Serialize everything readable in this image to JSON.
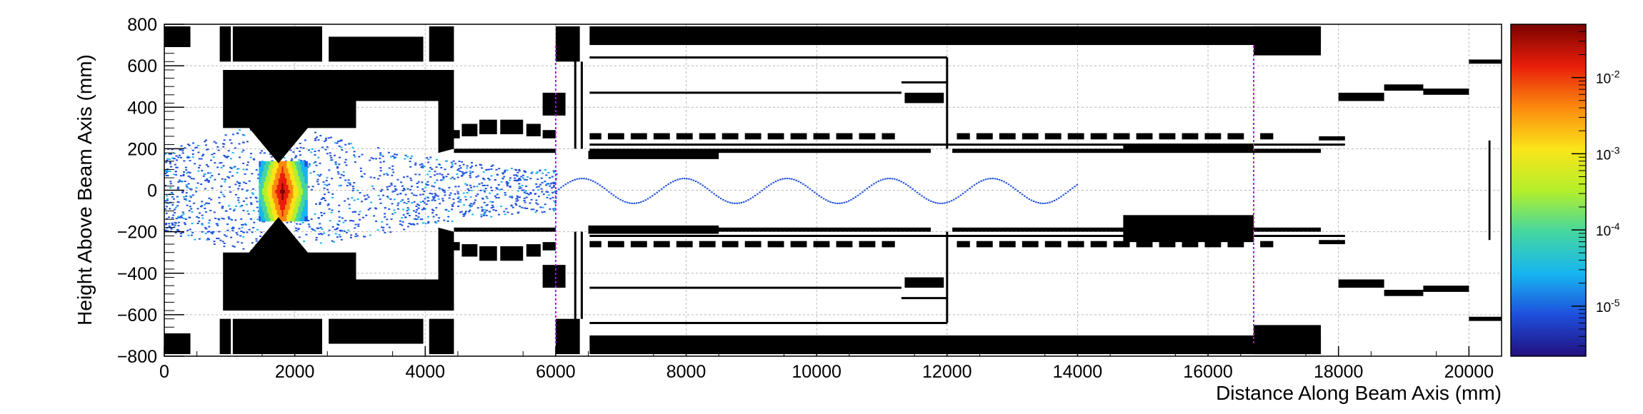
{
  "chart_data": {
    "type": "heatmap",
    "title": "",
    "xlabel": "Distance Along Beam Axis (mm)",
    "ylabel": "Height Above Beam Axis (mm)",
    "xlim": [
      0,
      20500
    ],
    "ylim": [
      -800,
      800
    ],
    "x_ticks": [
      0,
      2000,
      4000,
      6000,
      8000,
      10000,
      12000,
      14000,
      16000,
      18000,
      20000
    ],
    "x_tick_labels": [
      "0",
      "2000",
      "4000",
      "6000",
      "8000",
      "10000",
      "12000",
      "14000",
      "16000",
      "18000",
      "20000"
    ],
    "y_ticks": [
      -800,
      -600,
      -400,
      -200,
      0,
      200,
      400,
      600,
      800
    ],
    "y_tick_labels": [
      "−800",
      "−600",
      "−400",
      "−200",
      "0",
      "200",
      "400",
      "600",
      "800"
    ],
    "grid": true,
    "colorscale": {
      "type": "log",
      "range": [
        2.2e-06,
        0.05
      ],
      "tick_values": [
        1e-05,
        0.0001,
        0.001,
        0.01
      ],
      "tick_labels": [
        "10^-5",
        "10^-4",
        "10^-3",
        "10^-2"
      ],
      "colors": [
        "#22107f",
        "#1e4fdc",
        "#17b6ef",
        "#45d6a0",
        "#b4f02a",
        "#fbe41a",
        "#fb8a0e",
        "#e81d0a",
        "#7a0200"
      ]
    },
    "markers": {
      "vertical_lines_x": [
        6000,
        16700
      ],
      "vertical_line_color": "#cc00cc"
    },
    "detector_blocks": [
      [
        0,
        400,
        690,
        790
      ],
      [
        0,
        400,
        -790,
        -690
      ],
      [
        850,
        1020,
        620,
        790
      ],
      [
        1050,
        2420,
        620,
        790
      ],
      [
        2520,
        3970,
        620,
        740
      ],
      [
        4060,
        4440,
        620,
        790
      ],
      [
        850,
        1020,
        -790,
        -620
      ],
      [
        1050,
        2420,
        -790,
        -620
      ],
      [
        2520,
        3970,
        -740,
        -620
      ],
      [
        4060,
        4440,
        -790,
        -620
      ],
      [
        6000,
        6370,
        620,
        790
      ],
      [
        6000,
        6370,
        -790,
        -620
      ],
      [
        6520,
        17730,
        700,
        790
      ],
      [
        6520,
        17730,
        -790,
        -700
      ],
      [
        16700,
        17730,
        650,
        790
      ],
      [
        16700,
        17730,
        -790,
        -650
      ],
      [
        5800,
        6150,
        360,
        470
      ],
      [
        5800,
        6150,
        -470,
        -360
      ],
      [
        4440,
        6000,
        180,
        200
      ],
      [
        4440,
        6000,
        -200,
        -180
      ],
      [
        4300,
        4530,
        250,
        290
      ],
      [
        4560,
        4800,
        260,
        320
      ],
      [
        4830,
        5100,
        270,
        340
      ],
      [
        5150,
        5500,
        270,
        340
      ],
      [
        5550,
        5770,
        260,
        320
      ],
      [
        5800,
        6000,
        250,
        290
      ],
      [
        4300,
        4530,
        -290,
        -250
      ],
      [
        4560,
        4800,
        -320,
        -260
      ],
      [
        4830,
        5100,
        -340,
        -270
      ],
      [
        5150,
        5500,
        -340,
        -270
      ],
      [
        5550,
        5770,
        -320,
        -260
      ],
      [
        5800,
        6000,
        -290,
        -250
      ],
      [
        6500,
        8500,
        150,
        190
      ],
      [
        6500,
        8500,
        -210,
        -170
      ],
      [
        6520,
        11750,
        180,
        200
      ],
      [
        6520,
        11750,
        -200,
        -180
      ],
      [
        12080,
        17730,
        180,
        200
      ],
      [
        12080,
        17730,
        -200,
        -180
      ],
      [
        14700,
        16700,
        190,
        220
      ],
      [
        14700,
        16700,
        -250,
        -120
      ],
      [
        11350,
        11950,
        420,
        470
      ],
      [
        11350,
        11950,
        -470,
        -420
      ],
      [
        18000,
        18700,
        430,
        470
      ],
      [
        18700,
        19300,
        480,
        510
      ],
      [
        19300,
        20000,
        460,
        490
      ],
      [
        20000,
        20500,
        610,
        630
      ],
      [
        18000,
        18700,
        -470,
        -430
      ],
      [
        18700,
        19300,
        -510,
        -480
      ],
      [
        19300,
        20000,
        -490,
        -460
      ],
      [
        20000,
        20500,
        -630,
        -610
      ],
      [
        17700,
        18100,
        240,
        260
      ],
      [
        17700,
        18100,
        -260,
        -240
      ],
      [
        20300,
        20330,
        -240,
        240
      ]
    ],
    "detector_lines": [
      [
        6520,
        640,
        12000,
        640
      ],
      [
        6520,
        -640,
        12000,
        -640
      ],
      [
        6520,
        470,
        11300,
        470
      ],
      [
        6520,
        -470,
        11300,
        -470
      ],
      [
        11300,
        520,
        12000,
        520
      ],
      [
        11300,
        -520,
        12000,
        -520
      ],
      [
        12000,
        640,
        12000,
        200
      ],
      [
        12000,
        -640,
        12000,
        -200
      ],
      [
        6520,
        220,
        18100,
        220
      ],
      [
        6520,
        -220,
        18100,
        -220
      ],
      [
        6400,
        620,
        6400,
        200
      ],
      [
        6400,
        -620,
        6400,
        -200
      ],
      [
        6300,
        700,
        6300,
        200
      ],
      [
        6300,
        -700,
        6300,
        -200
      ]
    ],
    "dashed_segments_y": [
      260,
      -260
    ],
    "dashed_segments_x": [
      [
        6520,
        6700
      ],
      [
        6800,
        7050
      ],
      [
        7150,
        7400
      ],
      [
        7500,
        7750
      ],
      [
        7850,
        8100
      ],
      [
        8200,
        8450
      ],
      [
        8550,
        8800
      ],
      [
        8900,
        9150
      ],
      [
        9250,
        9500
      ],
      [
        9600,
        9850
      ],
      [
        9950,
        10200
      ],
      [
        10300,
        10550
      ],
      [
        10650,
        10900
      ],
      [
        11000,
        11200
      ],
      [
        12150,
        12350
      ],
      [
        12450,
        12700
      ],
      [
        12800,
        13050
      ],
      [
        13150,
        13400
      ],
      [
        13500,
        13750
      ],
      [
        13850,
        14100
      ],
      [
        14200,
        14450
      ],
      [
        14550,
        14800
      ],
      [
        14900,
        15150
      ],
      [
        15250,
        15500
      ],
      [
        15600,
        15850
      ],
      [
        15950,
        16200
      ],
      [
        16300,
        16550
      ],
      [
        16800,
        17000
      ]
    ]
  }
}
